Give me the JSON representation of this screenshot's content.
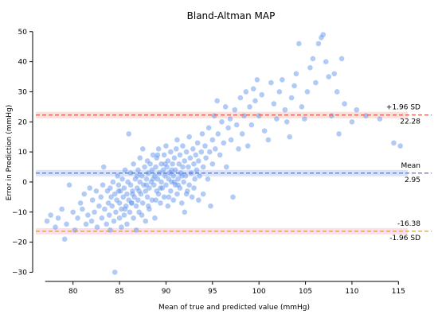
{
  "chart_data": {
    "type": "scatter",
    "title": "Bland-Altman MAP",
    "xlabel": "Mean of true and predicted value (mmHg)",
    "ylabel": "Error in Prediction (mmHg)",
    "xlim": [
      76,
      116
    ],
    "ylim": [
      -32,
      51
    ],
    "x_ticks": [
      80,
      85,
      90,
      95,
      100,
      105,
      110,
      115
    ],
    "y_ticks": [
      -30,
      -20,
      -10,
      0,
      10,
      20,
      30,
      40,
      50
    ],
    "grid": false,
    "point_color": "#6495ed",
    "reference_lines": [
      {
        "name": "+1.96 SD",
        "value": 22.28,
        "value_label": "22.28",
        "color": "#e8584a",
        "band_color": "#fbd3c9"
      },
      {
        "name": "Mean",
        "value": 2.95,
        "value_label": "2.95",
        "color": "#4a6ee8",
        "band_color": "#c9d8fb"
      },
      {
        "name": "-1.96 SD",
        "value": -16.38,
        "value_label": "-16.38",
        "color": "#e0a030",
        "band_color": "#f9d0e0"
      }
    ],
    "points": [
      [
        77.2,
        -13
      ],
      [
        77.6,
        -11
      ],
      [
        78.1,
        -15
      ],
      [
        78.4,
        -12
      ],
      [
        78.8,
        -9
      ],
      [
        79.1,
        -19
      ],
      [
        79.3,
        -14
      ],
      [
        79.6,
        -1
      ],
      [
        80.0,
        -10
      ],
      [
        80.2,
        -16
      ],
      [
        80.5,
        -12
      ],
      [
        80.8,
        -7
      ],
      [
        81.0,
        -9
      ],
      [
        81.2,
        -4
      ],
      [
        81.4,
        -14
      ],
      [
        81.6,
        -11
      ],
      [
        81.8,
        -2
      ],
      [
        82.0,
        -13
      ],
      [
        82.1,
        -6
      ],
      [
        82.3,
        -10
      ],
      [
        82.5,
        -3
      ],
      [
        82.6,
        -15
      ],
      [
        82.8,
        -8
      ],
      [
        83.0,
        -5
      ],
      [
        83.1,
        -12
      ],
      [
        83.2,
        -1
      ],
      [
        83.3,
        5
      ],
      [
        83.4,
        -9
      ],
      [
        83.6,
        -14
      ],
      [
        83.7,
        -3
      ],
      [
        83.8,
        -7
      ],
      [
        83.9,
        -11
      ],
      [
        84.0,
        -2
      ],
      [
        84.0,
        -16
      ],
      [
        84.1,
        -5
      ],
      [
        84.2,
        -8
      ],
      [
        84.3,
        0
      ],
      [
        84.4,
        -13
      ],
      [
        84.5,
        -4
      ],
      [
        84.5,
        -30
      ],
      [
        84.6,
        -10
      ],
      [
        84.7,
        -6
      ],
      [
        84.8,
        2
      ],
      [
        84.9,
        -1
      ],
      [
        85.0,
        -7
      ],
      [
        85.0,
        -12
      ],
      [
        85.1,
        -3
      ],
      [
        85.2,
        -15
      ],
      [
        85.2,
        -9
      ],
      [
        85.3,
        1
      ],
      [
        85.4,
        -5
      ],
      [
        85.5,
        -2
      ],
      [
        85.5,
        -11
      ],
      [
        85.6,
        4
      ],
      [
        85.7,
        -8
      ],
      [
        85.8,
        -4
      ],
      [
        85.8,
        -14
      ],
      [
        85.9,
        0
      ],
      [
        86.0,
        -6
      ],
      [
        86.0,
        16
      ],
      [
        86.1,
        -10
      ],
      [
        86.2,
        -1
      ],
      [
        86.2,
        3
      ],
      [
        86.3,
        -7
      ],
      [
        86.4,
        -3
      ],
      [
        86.5,
        -12
      ],
      [
        86.5,
        6
      ],
      [
        86.6,
        -5
      ],
      [
        86.7,
        1
      ],
      [
        86.8,
        -8
      ],
      [
        86.8,
        -16
      ],
      [
        86.9,
        -2
      ],
      [
        87.0,
        4
      ],
      [
        87.0,
        -6
      ],
      [
        87.1,
        -10
      ],
      [
        87.2,
        0
      ],
      [
        87.2,
        8
      ],
      [
        87.3,
        -4
      ],
      [
        87.4,
        2
      ],
      [
        87.5,
        -7
      ],
      [
        87.5,
        11
      ],
      [
        87.6,
        -1
      ],
      [
        87.7,
        5
      ],
      [
        87.8,
        -3
      ],
      [
        87.8,
        -13
      ],
      [
        87.9,
        1
      ],
      [
        88.0,
        7
      ],
      [
        88.0,
        -5
      ],
      [
        88.1,
        3
      ],
      [
        88.2,
        -2
      ],
      [
        88.2,
        -9
      ],
      [
        88.3,
        6
      ],
      [
        88.4,
        0
      ],
      [
        88.5,
        4
      ],
      [
        88.5,
        -6
      ],
      [
        88.6,
        9
      ],
      [
        88.7,
        -1
      ],
      [
        88.8,
        2
      ],
      [
        88.8,
        -12
      ],
      [
        88.9,
        5
      ],
      [
        89.0,
        -3
      ],
      [
        89.0,
        8
      ],
      [
        89.1,
        1
      ],
      [
        89.2,
        -4
      ],
      [
        89.2,
        11
      ],
      [
        89.3,
        3
      ],
      [
        89.4,
        -7
      ],
      [
        89.5,
        6
      ],
      [
        89.5,
        0
      ],
      [
        89.6,
        -2
      ],
      [
        89.7,
        4
      ],
      [
        89.8,
        9
      ],
      [
        89.8,
        -5
      ],
      [
        89.9,
        2
      ],
      [
        90.0,
        -1
      ],
      [
        90.0,
        12
      ],
      [
        90.1,
        5
      ],
      [
        90.2,
        -8
      ],
      [
        90.2,
        7
      ],
      [
        90.3,
        1
      ],
      [
        90.4,
        3
      ],
      [
        90.5,
        -3
      ],
      [
        90.5,
        10
      ],
      [
        90.6,
        0
      ],
      [
        90.7,
        6
      ],
      [
        90.8,
        -6
      ],
      [
        90.8,
        2
      ],
      [
        90.9,
        8
      ],
      [
        91.0,
        -1
      ],
      [
        91.0,
        4
      ],
      [
        91.1,
        11
      ],
      [
        91.2,
        -4
      ],
      [
        91.2,
        14
      ],
      [
        91.3,
        1
      ],
      [
        91.4,
        6
      ],
      [
        91.5,
        -2
      ],
      [
        91.5,
        9
      ],
      [
        91.6,
        3
      ],
      [
        91.7,
        -7
      ],
      [
        91.8,
        5
      ],
      [
        91.8,
        12
      ],
      [
        91.9,
        0
      ],
      [
        92.0,
        7
      ],
      [
        92.0,
        -10
      ],
      [
        92.1,
        2
      ],
      [
        92.2,
        10
      ],
      [
        92.3,
        -3
      ],
      [
        92.4,
        5
      ],
      [
        92.5,
        15
      ],
      [
        92.5,
        -1
      ],
      [
        92.6,
        8
      ],
      [
        92.7,
        3
      ],
      [
        92.8,
        -5
      ],
      [
        92.9,
        11
      ],
      [
        93.0,
        6
      ],
      [
        93.0,
        -2
      ],
      [
        93.1,
        1
      ],
      [
        93.2,
        9
      ],
      [
        93.3,
        4
      ],
      [
        93.4,
        13
      ],
      [
        93.5,
        -6
      ],
      [
        93.5,
        7
      ],
      [
        93.6,
        2
      ],
      [
        93.8,
        10
      ],
      [
        93.9,
        16
      ],
      [
        94.0,
        5
      ],
      [
        94.0,
        -4
      ],
      [
        94.2,
        12
      ],
      [
        94.3,
        8
      ],
      [
        94.5,
        1
      ],
      [
        94.6,
        18
      ],
      [
        94.7,
        10
      ],
      [
        94.8,
        -8
      ],
      [
        95.0,
        14
      ],
      [
        95.0,
        6
      ],
      [
        95.2,
        22
      ],
      [
        95.3,
        11
      ],
      [
        95.5,
        27
      ],
      [
        95.6,
        16
      ],
      [
        95.8,
        9
      ],
      [
        96.0,
        20
      ],
      [
        96.2,
        13
      ],
      [
        96.4,
        25
      ],
      [
        96.5,
        5
      ],
      [
        96.7,
        18
      ],
      [
        96.9,
        21
      ],
      [
        97.0,
        14
      ],
      [
        97.2,
        -5
      ],
      [
        97.4,
        24
      ],
      [
        97.6,
        19
      ],
      [
        97.8,
        11
      ],
      [
        98.0,
        28
      ],
      [
        98.2,
        16
      ],
      [
        98.4,
        22
      ],
      [
        98.6,
        30
      ],
      [
        98.8,
        12
      ],
      [
        99.0,
        25
      ],
      [
        99.2,
        19
      ],
      [
        99.4,
        31
      ],
      [
        99.6,
        27
      ],
      [
        99.8,
        34
      ],
      [
        100.0,
        22
      ],
      [
        100.3,
        29
      ],
      [
        100.6,
        17
      ],
      [
        101.0,
        14
      ],
      [
        101.3,
        33
      ],
      [
        101.6,
        26
      ],
      [
        101.9,
        21
      ],
      [
        102.2,
        30
      ],
      [
        102.5,
        34
      ],
      [
        102.8,
        24
      ],
      [
        103.0,
        20
      ],
      [
        103.3,
        15
      ],
      [
        103.5,
        28
      ],
      [
        103.8,
        32
      ],
      [
        104.0,
        36
      ],
      [
        104.3,
        46
      ],
      [
        104.6,
        25
      ],
      [
        104.9,
        21
      ],
      [
        105.2,
        30
      ],
      [
        105.5,
        38
      ],
      [
        105.8,
        41
      ],
      [
        106.1,
        33
      ],
      [
        106.4,
        46
      ],
      [
        106.7,
        48
      ],
      [
        106.9,
        49
      ],
      [
        107.2,
        40
      ],
      [
        107.5,
        35
      ],
      [
        107.8,
        22
      ],
      [
        108.1,
        36
      ],
      [
        108.4,
        30
      ],
      [
        108.6,
        16
      ],
      [
        108.9,
        41
      ],
      [
        109.2,
        26
      ],
      [
        110.0,
        20
      ],
      [
        110.5,
        24
      ],
      [
        111.5,
        22
      ],
      [
        113.0,
        21
      ],
      [
        114.5,
        13
      ],
      [
        115.2,
        12
      ],
      [
        86.3,
        -7
      ],
      [
        87.1,
        -3
      ],
      [
        88.6,
        1
      ],
      [
        89.4,
        -2
      ],
      [
        90.6,
        4
      ],
      [
        91.3,
        -1
      ],
      [
        88.1,
        -8
      ],
      [
        87.4,
        -11
      ],
      [
        89.9,
        6
      ],
      [
        90.9,
        0
      ],
      [
        86.9,
        2
      ],
      [
        85.6,
        -9
      ],
      [
        84.9,
        -3
      ],
      [
        88.9,
        -6
      ],
      [
        91.7,
        2
      ],
      [
        92.2,
        -4
      ],
      [
        89.1,
        9
      ],
      [
        87.9,
        -1
      ],
      [
        86.4,
        -4
      ],
      [
        90.3,
        -5
      ]
    ]
  }
}
